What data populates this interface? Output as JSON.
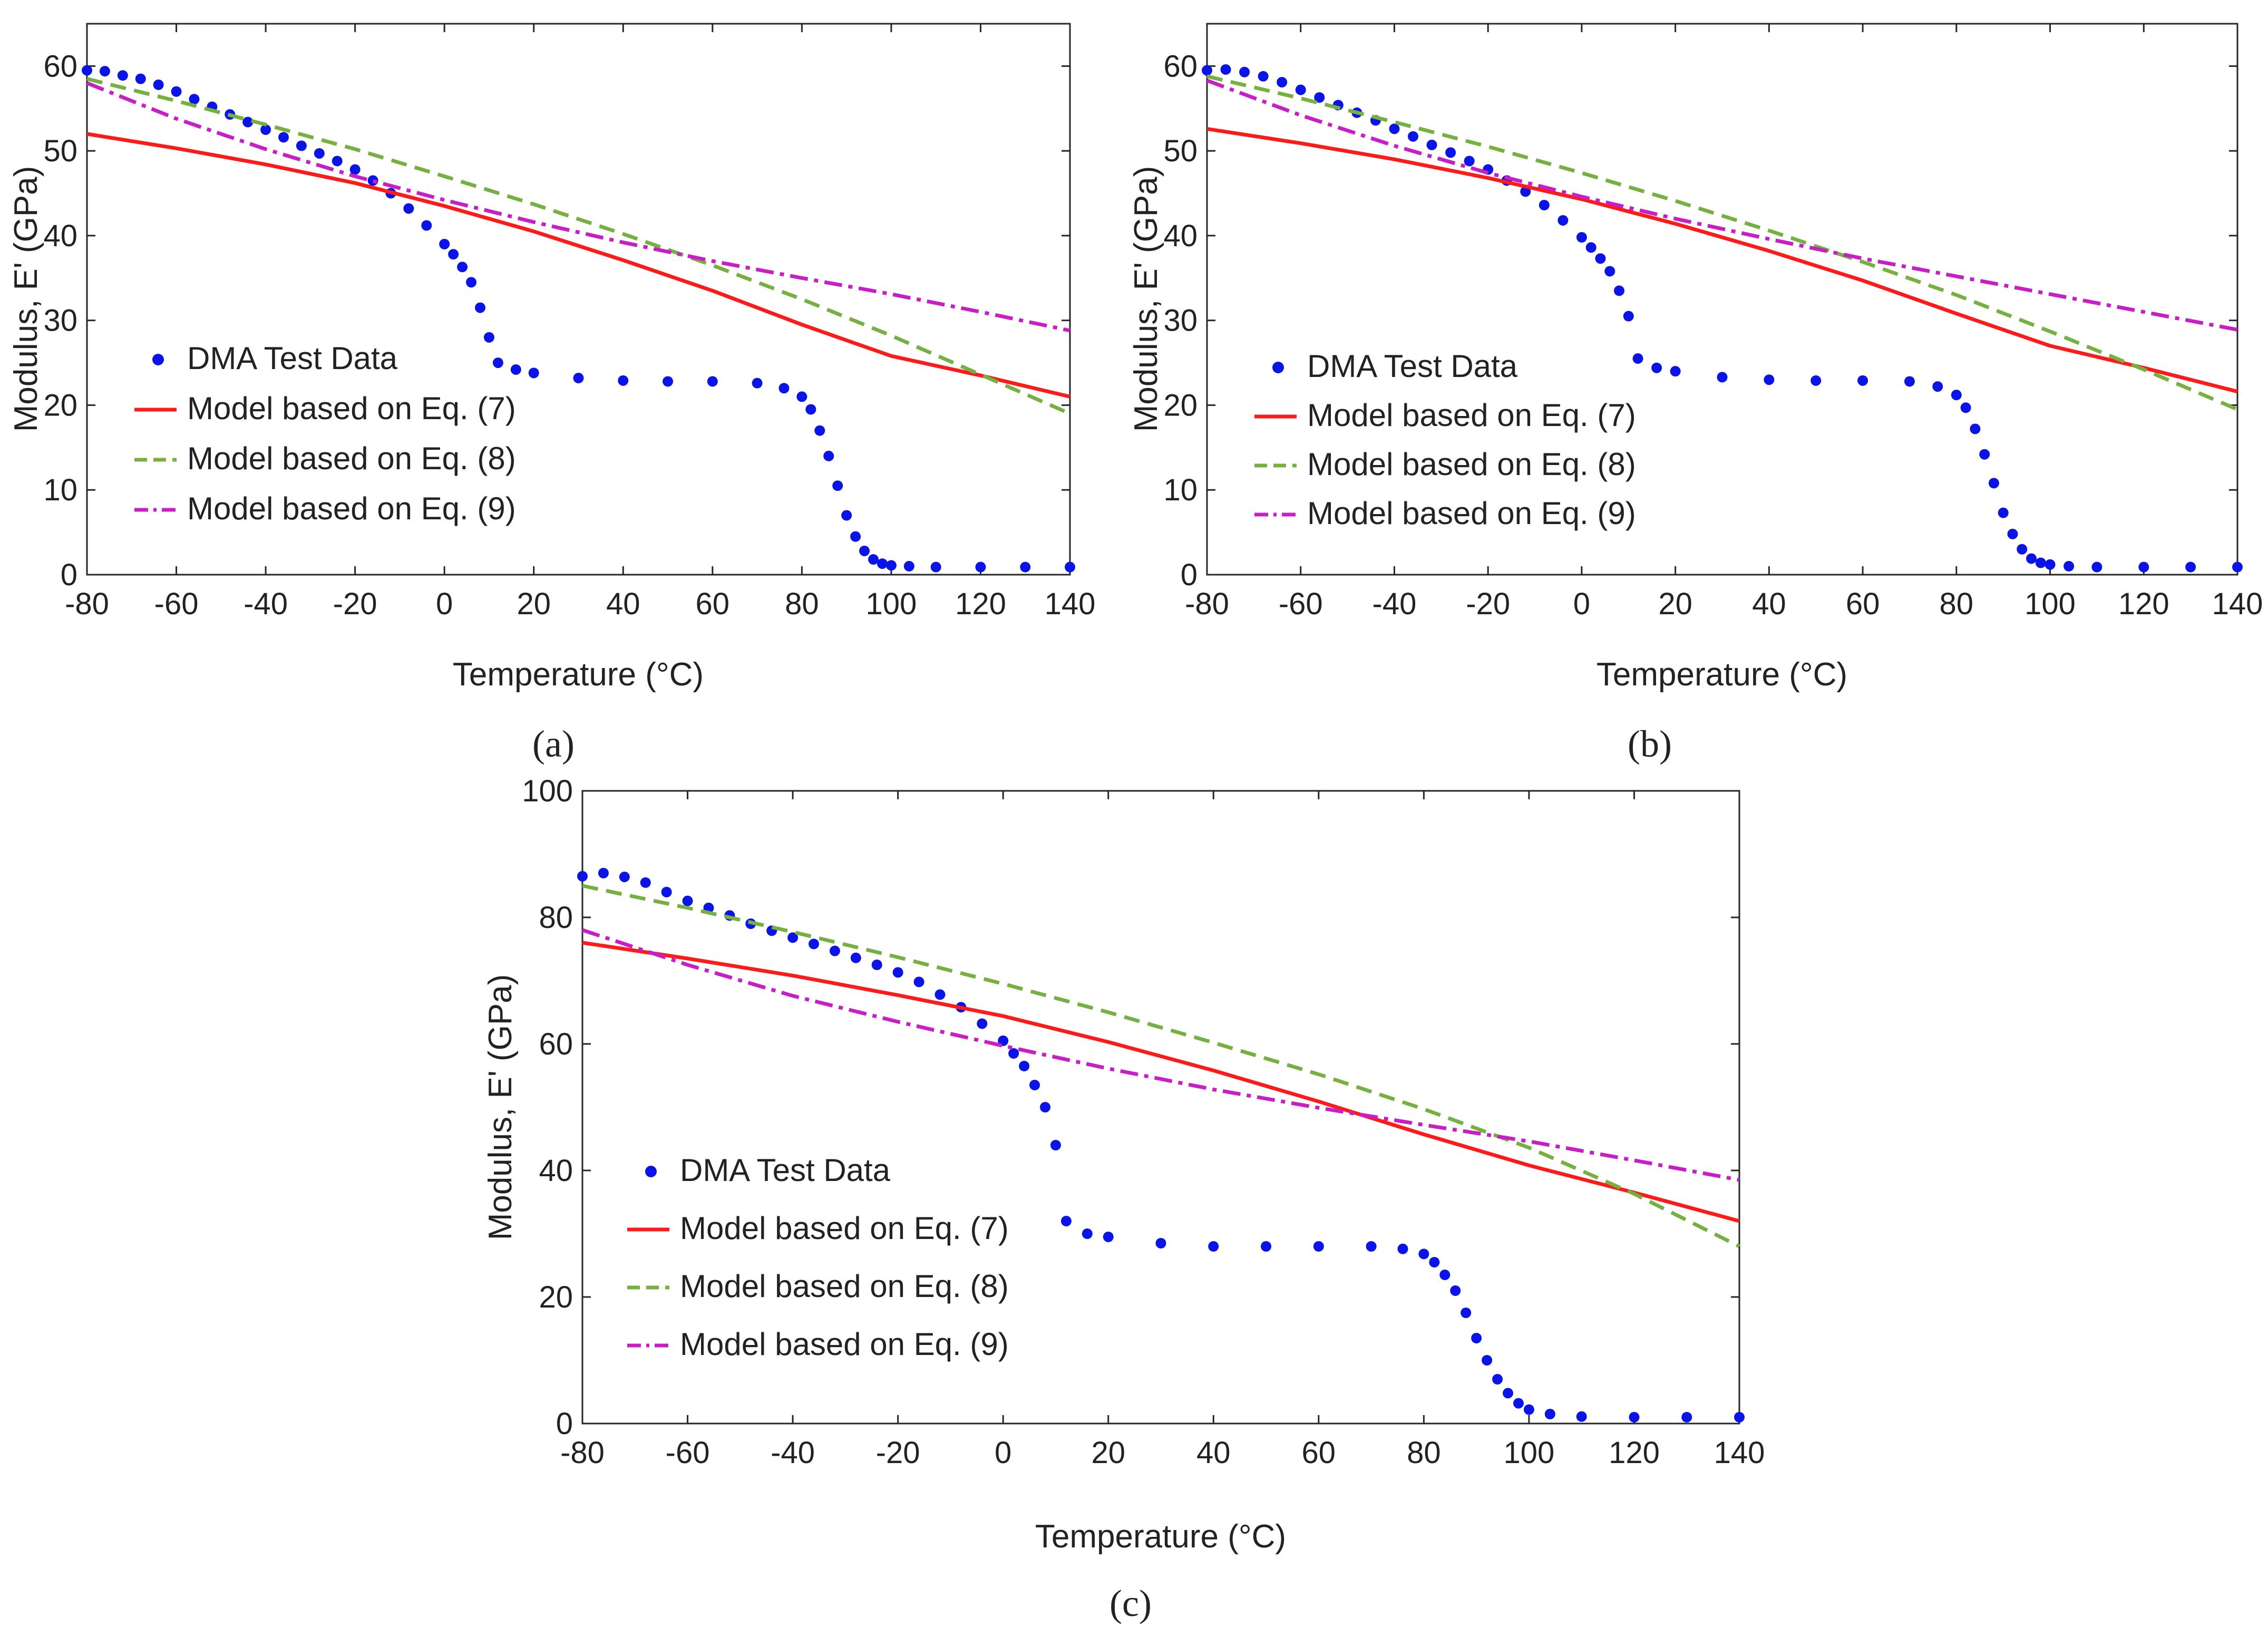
{
  "figure_labels": [
    "(a)",
    "(b)",
    "(c)"
  ],
  "chart_data": [
    {
      "type": "line",
      "panel": "(a)",
      "xlabel": "Temperature (°C)",
      "ylabel": "Modulus, E' (GPa)",
      "xlim": [
        -80,
        140
      ],
      "ylim": [
        0,
        65
      ],
      "xticks": [
        -80,
        -60,
        -40,
        -20,
        0,
        20,
        40,
        60,
        80,
        100,
        120,
        140
      ],
      "yticks": [
        0,
        10,
        20,
        30,
        40,
        50,
        60
      ],
      "legend_position": "center-left",
      "series": [
        {
          "name": "DMA Test Data",
          "style": "dots",
          "color": "#0a14e6",
          "x": [
            -80,
            -76,
            -72,
            -68,
            -64,
            -60,
            -56,
            -52,
            -48,
            -44,
            -40,
            -36,
            -32,
            -28,
            -24,
            -20,
            -16,
            -12,
            -8,
            -4,
            0,
            2,
            4,
            6,
            8,
            10,
            12,
            16,
            20,
            30,
            40,
            50,
            60,
            70,
            76,
            80,
            82,
            84,
            86,
            88,
            90,
            92,
            94,
            96,
            98,
            100,
            104,
            110,
            120,
            130,
            140
          ],
          "y": [
            59.5,
            59.4,
            58.9,
            58.5,
            57.8,
            57.0,
            56.1,
            55.2,
            54.3,
            53.4,
            52.5,
            51.6,
            50.6,
            49.7,
            48.8,
            47.8,
            46.5,
            45.0,
            43.2,
            41.2,
            39.0,
            37.8,
            36.3,
            34.5,
            31.5,
            28.0,
            25.0,
            24.2,
            23.8,
            23.2,
            22.9,
            22.8,
            22.8,
            22.6,
            22.0,
            21.0,
            19.5,
            17.0,
            14.0,
            10.5,
            7.0,
            4.5,
            2.8,
            1.8,
            1.3,
            1.1,
            1.0,
            0.9,
            0.9,
            0.9,
            0.9
          ]
        },
        {
          "name": "Model based on Eq. (7)",
          "style": "solid",
          "color": "#ff1a1a",
          "x": [
            -80,
            -60,
            -40,
            -20,
            0,
            20,
            40,
            60,
            80,
            100,
            120,
            140
          ],
          "y": [
            52.0,
            50.3,
            48.4,
            46.2,
            43.5,
            40.5,
            37.1,
            33.5,
            29.5,
            25.8,
            23.5,
            21.0
          ]
        },
        {
          "name": "Model based on Eq. (8)",
          "style": "dashed",
          "color": "#76b041",
          "x": [
            -80,
            -60,
            -40,
            -20,
            0,
            20,
            40,
            60,
            80,
            100,
            120,
            140
          ],
          "y": [
            58.5,
            55.9,
            53.1,
            50.2,
            47.0,
            43.7,
            40.2,
            36.5,
            32.5,
            28.2,
            23.6,
            19.0
          ]
        },
        {
          "name": "Model based on Eq. (9)",
          "style": "dashdot",
          "color": "#c81ec8",
          "x": [
            -80,
            -60,
            -40,
            -20,
            0,
            20,
            40,
            60,
            80,
            100,
            120,
            140
          ],
          "y": [
            58.0,
            53.8,
            50.2,
            47.0,
            44.2,
            41.6,
            39.2,
            37.0,
            35.0,
            33.1,
            31.0,
            28.8
          ]
        }
      ]
    },
    {
      "type": "line",
      "panel": "(b)",
      "xlabel": "Temperature (°C)",
      "ylabel": "Modulus, E' (GPa)",
      "xlim": [
        -80,
        140
      ],
      "ylim": [
        0,
        65
      ],
      "xticks": [
        -80,
        -60,
        -40,
        -20,
        0,
        20,
        40,
        60,
        80,
        100,
        120,
        140
      ],
      "yticks": [
        0,
        10,
        20,
        30,
        40,
        50,
        60
      ],
      "legend_position": "center-left",
      "series": [
        {
          "name": "DMA Test Data",
          "style": "dots",
          "color": "#0a14e6",
          "x": [
            -80,
            -76,
            -72,
            -68,
            -64,
            -60,
            -56,
            -52,
            -48,
            -44,
            -40,
            -36,
            -32,
            -28,
            -24,
            -20,
            -16,
            -12,
            -8,
            -4,
            0,
            2,
            4,
            6,
            8,
            10,
            12,
            16,
            20,
            30,
            40,
            50,
            60,
            70,
            76,
            80,
            82,
            84,
            86,
            88,
            90,
            92,
            94,
            96,
            98,
            100,
            104,
            110,
            120,
            130,
            140
          ],
          "y": [
            59.5,
            59.6,
            59.3,
            58.8,
            58.1,
            57.2,
            56.3,
            55.4,
            54.5,
            53.6,
            52.6,
            51.7,
            50.7,
            49.8,
            48.8,
            47.8,
            46.5,
            45.2,
            43.6,
            41.8,
            39.8,
            38.6,
            37.3,
            35.8,
            33.5,
            30.5,
            25.5,
            24.4,
            24.0,
            23.3,
            23.0,
            22.9,
            22.9,
            22.8,
            22.2,
            21.2,
            19.7,
            17.2,
            14.2,
            10.8,
            7.3,
            4.8,
            3.0,
            1.9,
            1.4,
            1.2,
            1.0,
            0.9,
            0.9,
            0.9,
            0.9
          ]
        },
        {
          "name": "Model based on Eq. (7)",
          "style": "solid",
          "color": "#ff1a1a",
          "x": [
            -80,
            -60,
            -40,
            -20,
            0,
            20,
            40,
            60,
            80,
            100,
            120,
            140
          ],
          "y": [
            52.6,
            50.9,
            49.0,
            46.8,
            44.3,
            41.4,
            38.2,
            34.7,
            30.8,
            27.0,
            24.4,
            21.6
          ]
        },
        {
          "name": "Model based on Eq. (8)",
          "style": "dashed",
          "color": "#76b041",
          "x": [
            -80,
            -60,
            -40,
            -20,
            0,
            20,
            40,
            60,
            80,
            100,
            120,
            140
          ],
          "y": [
            58.8,
            56.2,
            53.4,
            50.5,
            47.4,
            44.1,
            40.6,
            36.9,
            33.0,
            28.7,
            24.2,
            19.5
          ]
        },
        {
          "name": "Model based on Eq. (9)",
          "style": "dashdot",
          "color": "#c81ec8",
          "x": [
            -80,
            -60,
            -40,
            -20,
            0,
            20,
            40,
            60,
            80,
            100,
            120,
            140
          ],
          "y": [
            58.3,
            54.2,
            50.6,
            47.4,
            44.6,
            42.0,
            39.6,
            37.3,
            35.2,
            33.1,
            31.0,
            28.9
          ]
        }
      ]
    },
    {
      "type": "line",
      "panel": "(c)",
      "xlabel": "Temperature (°C)",
      "ylabel": "Modulus, E' (GPa)",
      "xlim": [
        -80,
        140
      ],
      "ylim": [
        0,
        100
      ],
      "xticks": [
        -80,
        -60,
        -40,
        -20,
        0,
        20,
        40,
        60,
        80,
        100,
        120,
        140
      ],
      "yticks": [
        0,
        20,
        40,
        60,
        80,
        100
      ],
      "legend_position": "center-left",
      "series": [
        {
          "name": "DMA Test Data",
          "style": "dots",
          "color": "#0a14e6",
          "x": [
            -80,
            -76,
            -72,
            -68,
            -64,
            -60,
            -56,
            -52,
            -48,
            -44,
            -40,
            -36,
            -32,
            -28,
            -24,
            -20,
            -16,
            -12,
            -8,
            -4,
            0,
            2,
            4,
            6,
            8,
            10,
            12,
            16,
            20,
            30,
            40,
            50,
            60,
            70,
            76,
            80,
            82,
            84,
            86,
            88,
            90,
            92,
            94,
            96,
            98,
            100,
            104,
            110,
            120,
            130,
            140
          ],
          "y": [
            86.5,
            87.0,
            86.4,
            85.5,
            84.0,
            82.6,
            81.5,
            80.3,
            79.0,
            77.9,
            76.8,
            75.8,
            74.7,
            73.6,
            72.5,
            71.3,
            69.8,
            67.8,
            65.8,
            63.2,
            60.5,
            58.5,
            56.5,
            53.5,
            50.0,
            44.0,
            32.0,
            30.0,
            29.5,
            28.5,
            28.0,
            28.0,
            28.0,
            28.0,
            27.6,
            26.8,
            25.5,
            23.5,
            21.0,
            17.5,
            13.5,
            10.0,
            7.0,
            4.8,
            3.2,
            2.2,
            1.5,
            1.1,
            1.0,
            1.0,
            1.0
          ]
        },
        {
          "name": "Model based on Eq. (7)",
          "style": "solid",
          "color": "#ff1a1a",
          "x": [
            -80,
            -60,
            -40,
            -20,
            0,
            20,
            40,
            60,
            80,
            100,
            120,
            140
          ],
          "y": [
            76.0,
            73.5,
            70.8,
            67.7,
            64.4,
            60.3,
            55.8,
            50.9,
            45.7,
            40.8,
            36.5,
            32.0
          ]
        },
        {
          "name": "Model based on Eq. (8)",
          "style": "dashed",
          "color": "#76b041",
          "x": [
            -80,
            -60,
            -40,
            -20,
            0,
            20,
            40,
            60,
            80,
            100,
            120,
            140
          ],
          "y": [
            85.0,
            81.5,
            77.7,
            73.7,
            69.5,
            65.0,
            60.2,
            55.2,
            49.7,
            43.6,
            36.3,
            28.0
          ]
        },
        {
          "name": "Model based on Eq. (9)",
          "style": "dashdot",
          "color": "#c81ec8",
          "x": [
            -80,
            -60,
            -40,
            -20,
            0,
            20,
            40,
            60,
            80,
            100,
            120,
            140
          ],
          "y": [
            78.0,
            72.5,
            67.6,
            63.5,
            59.7,
            56.1,
            52.8,
            49.9,
            47.2,
            44.6,
            41.6,
            38.5
          ]
        }
      ]
    }
  ]
}
